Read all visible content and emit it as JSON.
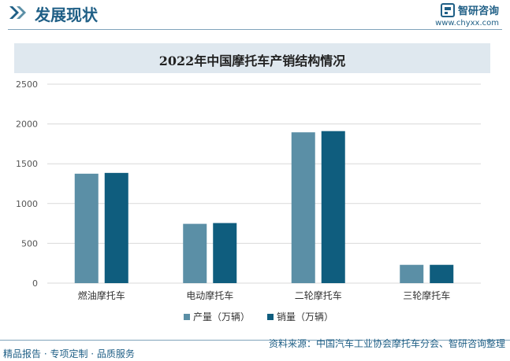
{
  "header": {
    "title": "发展现状",
    "logo_text": "智研咨询",
    "site": "www.chyxx.com"
  },
  "colors": {
    "primary": "#1f5f86",
    "production": "#5b8fa6",
    "sales": "#0f5d7e",
    "title_band": "#dfe8ef"
  },
  "chart_data": {
    "type": "bar",
    "title": "2022年中国摩托车产销结构情况",
    "categories": [
      "燃油摩托车",
      "电动摩托车",
      "二轮摩托车",
      "三轮摩托车"
    ],
    "series": [
      {
        "name": "产量（万辆）",
        "color": "#5b8fa6",
        "values": [
          1375,
          745,
          1895,
          230
        ]
      },
      {
        "name": "销量（万辆）",
        "color": "#0f5d7e",
        "values": [
          1385,
          755,
          1910,
          230
        ]
      }
    ],
    "ylim": [
      0,
      2500
    ],
    "yticks": [
      0,
      500,
      1000,
      1500,
      2000,
      2500
    ],
    "grid": true,
    "legend": "bottom"
  },
  "footer": {
    "left": "精品报告 · 专项定制 · 品质服务",
    "source": "资料来源：中国汽车工业协会摩托车分会、智研咨询整理"
  }
}
